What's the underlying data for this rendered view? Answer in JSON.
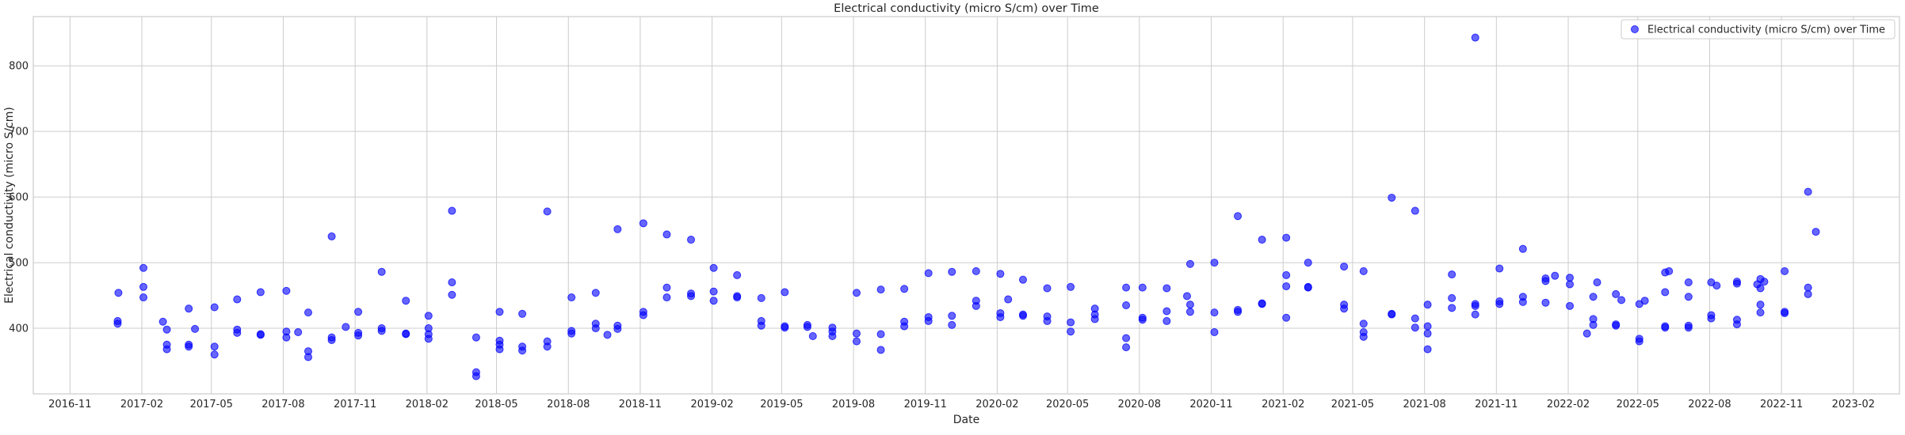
{
  "chart_data": {
    "type": "scatter",
    "title": "Electrical conductivity (micro S/cm) over Time",
    "xlabel": "Date",
    "ylabel": "Electrical conductivity (micro S/cm)",
    "xlim": [
      "2016-09-15",
      "2023-04-01"
    ],
    "ylim": [
      300,
      875
    ],
    "x_ticks": [
      "2016-11",
      "2017-02",
      "2017-05",
      "2017-08",
      "2017-11",
      "2018-02",
      "2018-05",
      "2018-08",
      "2018-11",
      "2019-02",
      "2019-05",
      "2019-08",
      "2019-11",
      "2020-02",
      "2020-05",
      "2020-08",
      "2020-11",
      "2021-02",
      "2021-05",
      "2021-08",
      "2021-11",
      "2022-02",
      "2022-05",
      "2022-08",
      "2022-11",
      "2023-02"
    ],
    "y_ticks": [
      400,
      500,
      600,
      700,
      800
    ],
    "grid": true,
    "legend_position": "top-right",
    "colors": {
      "marker": "#0000ff",
      "grid": "#cccccc",
      "axes": "#cccccc"
    },
    "series": [
      {
        "name": "Electrical conductivity (micro S/cm) over Time",
        "points": [
          {
            "x": "2017-01-01",
            "y": 407
          },
          {
            "x": "2017-01-01",
            "y": 411
          },
          {
            "x": "2017-01-02",
            "y": 454
          },
          {
            "x": "2017-02-03",
            "y": 492
          },
          {
            "x": "2017-02-03",
            "y": 463
          },
          {
            "x": "2017-02-03",
            "y": 447
          },
          {
            "x": "2017-02-28",
            "y": 410
          },
          {
            "x": "2017-03-05",
            "y": 398
          },
          {
            "x": "2017-03-05",
            "y": 375
          },
          {
            "x": "2017-03-05",
            "y": 368
          },
          {
            "x": "2017-04-02",
            "y": 430
          },
          {
            "x": "2017-04-02",
            "y": 375
          },
          {
            "x": "2017-04-02",
            "y": 372
          },
          {
            "x": "2017-04-10",
            "y": 399
          },
          {
            "x": "2017-05-05",
            "y": 432
          },
          {
            "x": "2017-05-05",
            "y": 372
          },
          {
            "x": "2017-05-05",
            "y": 360
          },
          {
            "x": "2017-06-03",
            "y": 444
          },
          {
            "x": "2017-06-03",
            "y": 398
          },
          {
            "x": "2017-06-03",
            "y": 393
          },
          {
            "x": "2017-07-03",
            "y": 455
          },
          {
            "x": "2017-07-03",
            "y": 391
          },
          {
            "x": "2017-07-03",
            "y": 390
          },
          {
            "x": "2017-08-05",
            "y": 457
          },
          {
            "x": "2017-08-05",
            "y": 395
          },
          {
            "x": "2017-08-05",
            "y": 386
          },
          {
            "x": "2017-08-20",
            "y": 394
          },
          {
            "x": "2017-09-02",
            "y": 424
          },
          {
            "x": "2017-09-02",
            "y": 365
          },
          {
            "x": "2017-09-02",
            "y": 356
          },
          {
            "x": "2017-10-02",
            "y": 540
          },
          {
            "x": "2017-10-02",
            "y": 386
          },
          {
            "x": "2017-10-02",
            "y": 382
          },
          {
            "x": "2017-10-20",
            "y": 402
          },
          {
            "x": "2017-11-05",
            "y": 425
          },
          {
            "x": "2017-11-05",
            "y": 393
          },
          {
            "x": "2017-11-05",
            "y": 389
          },
          {
            "x": "2017-12-05",
            "y": 486
          },
          {
            "x": "2017-12-05",
            "y": 400
          },
          {
            "x": "2017-12-05",
            "y": 396
          },
          {
            "x": "2018-01-05",
            "y": 442
          },
          {
            "x": "2018-01-05",
            "y": 392
          },
          {
            "x": "2018-01-05",
            "y": 391
          },
          {
            "x": "2018-02-03",
            "y": 419
          },
          {
            "x": "2018-02-03",
            "y": 400
          },
          {
            "x": "2018-02-03",
            "y": 391
          },
          {
            "x": "2018-02-03",
            "y": 384
          },
          {
            "x": "2018-03-05",
            "y": 579
          },
          {
            "x": "2018-03-05",
            "y": 470
          },
          {
            "x": "2018-03-05",
            "y": 451
          },
          {
            "x": "2018-04-05",
            "y": 386
          },
          {
            "x": "2018-04-05",
            "y": 333
          },
          {
            "x": "2018-04-05",
            "y": 327
          },
          {
            "x": "2018-05-05",
            "y": 425
          },
          {
            "x": "2018-05-05",
            "y": 381
          },
          {
            "x": "2018-05-05",
            "y": 375
          },
          {
            "x": "2018-05-05",
            "y": 368
          },
          {
            "x": "2018-06-03",
            "y": 422
          },
          {
            "x": "2018-06-03",
            "y": 372
          },
          {
            "x": "2018-06-03",
            "y": 366
          },
          {
            "x": "2018-07-05",
            "y": 578
          },
          {
            "x": "2018-07-05",
            "y": 380
          },
          {
            "x": "2018-07-05",
            "y": 372
          },
          {
            "x": "2018-08-05",
            "y": 447
          },
          {
            "x": "2018-08-05",
            "y": 396
          },
          {
            "x": "2018-08-05",
            "y": 392
          },
          {
            "x": "2018-09-05",
            "y": 454
          },
          {
            "x": "2018-09-05",
            "y": 407
          },
          {
            "x": "2018-09-05",
            "y": 400
          },
          {
            "x": "2018-09-20",
            "y": 390
          },
          {
            "x": "2018-10-03",
            "y": 551
          },
          {
            "x": "2018-10-03",
            "y": 404
          },
          {
            "x": "2018-10-03",
            "y": 399
          },
          {
            "x": "2018-11-05",
            "y": 560
          },
          {
            "x": "2018-11-05",
            "y": 425
          },
          {
            "x": "2018-11-05",
            "y": 420
          },
          {
            "x": "2018-12-05",
            "y": 543
          },
          {
            "x": "2018-12-05",
            "y": 462
          },
          {
            "x": "2018-12-05",
            "y": 447
          },
          {
            "x": "2019-01-05",
            "y": 535
          },
          {
            "x": "2019-01-05",
            "y": 453
          },
          {
            "x": "2019-01-05",
            "y": 449
          },
          {
            "x": "2019-02-03",
            "y": 492
          },
          {
            "x": "2019-02-03",
            "y": 456
          },
          {
            "x": "2019-02-03",
            "y": 442
          },
          {
            "x": "2019-03-05",
            "y": 481
          },
          {
            "x": "2019-03-05",
            "y": 449
          },
          {
            "x": "2019-03-05",
            "y": 447
          },
          {
            "x": "2019-04-05",
            "y": 446
          },
          {
            "x": "2019-04-05",
            "y": 411
          },
          {
            "x": "2019-04-05",
            "y": 404
          },
          {
            "x": "2019-05-05",
            "y": 455
          },
          {
            "x": "2019-05-05",
            "y": 403
          },
          {
            "x": "2019-05-05",
            "y": 401
          },
          {
            "x": "2019-06-03",
            "y": 405
          },
          {
            "x": "2019-06-03",
            "y": 402
          },
          {
            "x": "2019-06-10",
            "y": 388
          },
          {
            "x": "2019-07-05",
            "y": 401
          },
          {
            "x": "2019-07-05",
            "y": 395
          },
          {
            "x": "2019-07-05",
            "y": 388
          },
          {
            "x": "2019-08-05",
            "y": 454
          },
          {
            "x": "2019-08-05",
            "y": 392
          },
          {
            "x": "2019-08-05",
            "y": 380
          },
          {
            "x": "2019-09-05",
            "y": 459
          },
          {
            "x": "2019-09-05",
            "y": 391
          },
          {
            "x": "2019-09-05",
            "y": 367
          },
          {
            "x": "2019-10-05",
            "y": 460
          },
          {
            "x": "2019-10-05",
            "y": 410
          },
          {
            "x": "2019-10-05",
            "y": 403
          },
          {
            "x": "2019-11-05",
            "y": 484
          },
          {
            "x": "2019-11-05",
            "y": 417
          },
          {
            "x": "2019-11-05",
            "y": 411
          },
          {
            "x": "2019-12-05",
            "y": 486
          },
          {
            "x": "2019-12-05",
            "y": 419
          },
          {
            "x": "2019-12-05",
            "y": 405
          },
          {
            "x": "2020-01-05",
            "y": 487
          },
          {
            "x": "2020-01-05",
            "y": 442
          },
          {
            "x": "2020-01-05",
            "y": 434
          },
          {
            "x": "2020-02-05",
            "y": 483
          },
          {
            "x": "2020-02-05",
            "y": 423
          },
          {
            "x": "2020-02-05",
            "y": 417
          },
          {
            "x": "2020-02-15",
            "y": 444
          },
          {
            "x": "2020-03-05",
            "y": 474
          },
          {
            "x": "2020-03-05",
            "y": 421
          },
          {
            "x": "2020-03-05",
            "y": 419
          },
          {
            "x": "2020-04-05",
            "y": 461
          },
          {
            "x": "2020-04-05",
            "y": 418
          },
          {
            "x": "2020-04-05",
            "y": 411
          },
          {
            "x": "2020-05-05",
            "y": 463
          },
          {
            "x": "2020-05-05",
            "y": 409
          },
          {
            "x": "2020-05-05",
            "y": 395
          },
          {
            "x": "2020-06-05",
            "y": 430
          },
          {
            "x": "2020-06-05",
            "y": 421
          },
          {
            "x": "2020-06-05",
            "y": 414
          },
          {
            "x": "2020-07-15",
            "y": 462
          },
          {
            "x": "2020-07-15",
            "y": 435
          },
          {
            "x": "2020-07-15",
            "y": 385
          },
          {
            "x": "2020-07-15",
            "y": 371
          },
          {
            "x": "2020-08-05",
            "y": 462
          },
          {
            "x": "2020-08-05",
            "y": 416
          },
          {
            "x": "2020-08-05",
            "y": 413
          },
          {
            "x": "2020-09-05",
            "y": 461
          },
          {
            "x": "2020-09-05",
            "y": 426
          },
          {
            "x": "2020-09-05",
            "y": 411
          },
          {
            "x": "2020-10-01",
            "y": 449
          },
          {
            "x": "2020-10-05",
            "y": 498
          },
          {
            "x": "2020-10-05",
            "y": 436
          },
          {
            "x": "2020-10-05",
            "y": 425
          },
          {
            "x": "2020-11-05",
            "y": 500
          },
          {
            "x": "2020-11-05",
            "y": 424
          },
          {
            "x": "2020-11-05",
            "y": 394
          },
          {
            "x": "2020-12-05",
            "y": 571
          },
          {
            "x": "2020-12-05",
            "y": 428
          },
          {
            "x": "2020-12-05",
            "y": 425
          },
          {
            "x": "2021-01-05",
            "y": 535
          },
          {
            "x": "2021-01-05",
            "y": 438
          },
          {
            "x": "2021-01-05",
            "y": 437
          },
          {
            "x": "2021-02-05",
            "y": 538
          },
          {
            "x": "2021-02-05",
            "y": 481
          },
          {
            "x": "2021-02-05",
            "y": 464
          },
          {
            "x": "2021-02-05",
            "y": 416
          },
          {
            "x": "2021-03-05",
            "y": 500
          },
          {
            "x": "2021-03-05",
            "y": 463
          },
          {
            "x": "2021-03-05",
            "y": 462
          },
          {
            "x": "2021-04-20",
            "y": 494
          },
          {
            "x": "2021-04-20",
            "y": 436
          },
          {
            "x": "2021-04-20",
            "y": 430
          },
          {
            "x": "2021-05-15",
            "y": 487
          },
          {
            "x": "2021-05-15",
            "y": 407
          },
          {
            "x": "2021-05-15",
            "y": 394
          },
          {
            "x": "2021-05-15",
            "y": 387
          },
          {
            "x": "2021-06-20",
            "y": 599
          },
          {
            "x": "2021-06-20",
            "y": 422
          },
          {
            "x": "2021-06-20",
            "y": 421
          },
          {
            "x": "2021-07-20",
            "y": 579
          },
          {
            "x": "2021-07-20",
            "y": 415
          },
          {
            "x": "2021-07-20",
            "y": 401
          },
          {
            "x": "2021-08-05",
            "y": 436
          },
          {
            "x": "2021-08-05",
            "y": 403
          },
          {
            "x": "2021-08-05",
            "y": 392
          },
          {
            "x": "2021-08-05",
            "y": 368
          },
          {
            "x": "2021-09-05",
            "y": 482
          },
          {
            "x": "2021-09-05",
            "y": 446
          },
          {
            "x": "2021-09-05",
            "y": 431
          },
          {
            "x": "2021-10-05",
            "y": 843
          },
          {
            "x": "2021-10-05",
            "y": 437
          },
          {
            "x": "2021-10-05",
            "y": 434
          },
          {
            "x": "2021-10-05",
            "y": 421
          },
          {
            "x": "2021-11-05",
            "y": 491
          },
          {
            "x": "2021-11-05",
            "y": 441
          },
          {
            "x": "2021-11-05",
            "y": 437
          },
          {
            "x": "2021-12-05",
            "y": 521
          },
          {
            "x": "2021-12-05",
            "y": 448
          },
          {
            "x": "2021-12-05",
            "y": 440
          },
          {
            "x": "2022-01-03",
            "y": 476
          },
          {
            "x": "2022-01-03",
            "y": 472
          },
          {
            "x": "2022-01-03",
            "y": 439
          },
          {
            "x": "2022-01-15",
            "y": 480
          },
          {
            "x": "2022-02-03",
            "y": 477
          },
          {
            "x": "2022-02-03",
            "y": 467
          },
          {
            "x": "2022-02-03",
            "y": 434
          },
          {
            "x": "2022-02-25",
            "y": 392
          },
          {
            "x": "2022-03-05",
            "y": 448
          },
          {
            "x": "2022-03-05",
            "y": 414
          },
          {
            "x": "2022-03-05",
            "y": 405
          },
          {
            "x": "2022-03-10",
            "y": 470
          },
          {
            "x": "2022-04-03",
            "y": 452
          },
          {
            "x": "2022-04-03",
            "y": 406
          },
          {
            "x": "2022-04-03",
            "y": 404
          },
          {
            "x": "2022-04-10",
            "y": 443
          },
          {
            "x": "2022-05-03",
            "y": 437
          },
          {
            "x": "2022-05-03",
            "y": 384
          },
          {
            "x": "2022-05-03",
            "y": 380
          },
          {
            "x": "2022-05-10",
            "y": 442
          },
          {
            "x": "2022-06-05",
            "y": 485
          },
          {
            "x": "2022-06-05",
            "y": 455
          },
          {
            "x": "2022-06-05",
            "y": 403
          },
          {
            "x": "2022-06-05",
            "y": 401
          },
          {
            "x": "2022-06-10",
            "y": 487
          },
          {
            "x": "2022-07-05",
            "y": 470
          },
          {
            "x": "2022-07-05",
            "y": 448
          },
          {
            "x": "2022-07-05",
            "y": 404
          },
          {
            "x": "2022-07-05",
            "y": 401
          },
          {
            "x": "2022-08-03",
            "y": 470
          },
          {
            "x": "2022-08-03",
            "y": 420
          },
          {
            "x": "2022-08-03",
            "y": 415
          },
          {
            "x": "2022-08-10",
            "y": 465
          },
          {
            "x": "2022-09-05",
            "y": 471
          },
          {
            "x": "2022-09-05",
            "y": 468
          },
          {
            "x": "2022-09-05",
            "y": 413
          },
          {
            "x": "2022-09-05",
            "y": 406
          },
          {
            "x": "2022-10-01",
            "y": 467
          },
          {
            "x": "2022-10-05",
            "y": 475
          },
          {
            "x": "2022-10-05",
            "y": 461
          },
          {
            "x": "2022-10-05",
            "y": 436
          },
          {
            "x": "2022-10-05",
            "y": 424
          },
          {
            "x": "2022-10-10",
            "y": 471
          },
          {
            "x": "2022-11-05",
            "y": 487
          },
          {
            "x": "2022-11-05",
            "y": 425
          },
          {
            "x": "2022-11-05",
            "y": 423
          },
          {
            "x": "2022-12-05",
            "y": 608
          },
          {
            "x": "2022-12-05",
            "y": 462
          },
          {
            "x": "2022-12-05",
            "y": 452
          },
          {
            "x": "2022-12-15",
            "y": 547
          }
        ]
      }
    ]
  }
}
